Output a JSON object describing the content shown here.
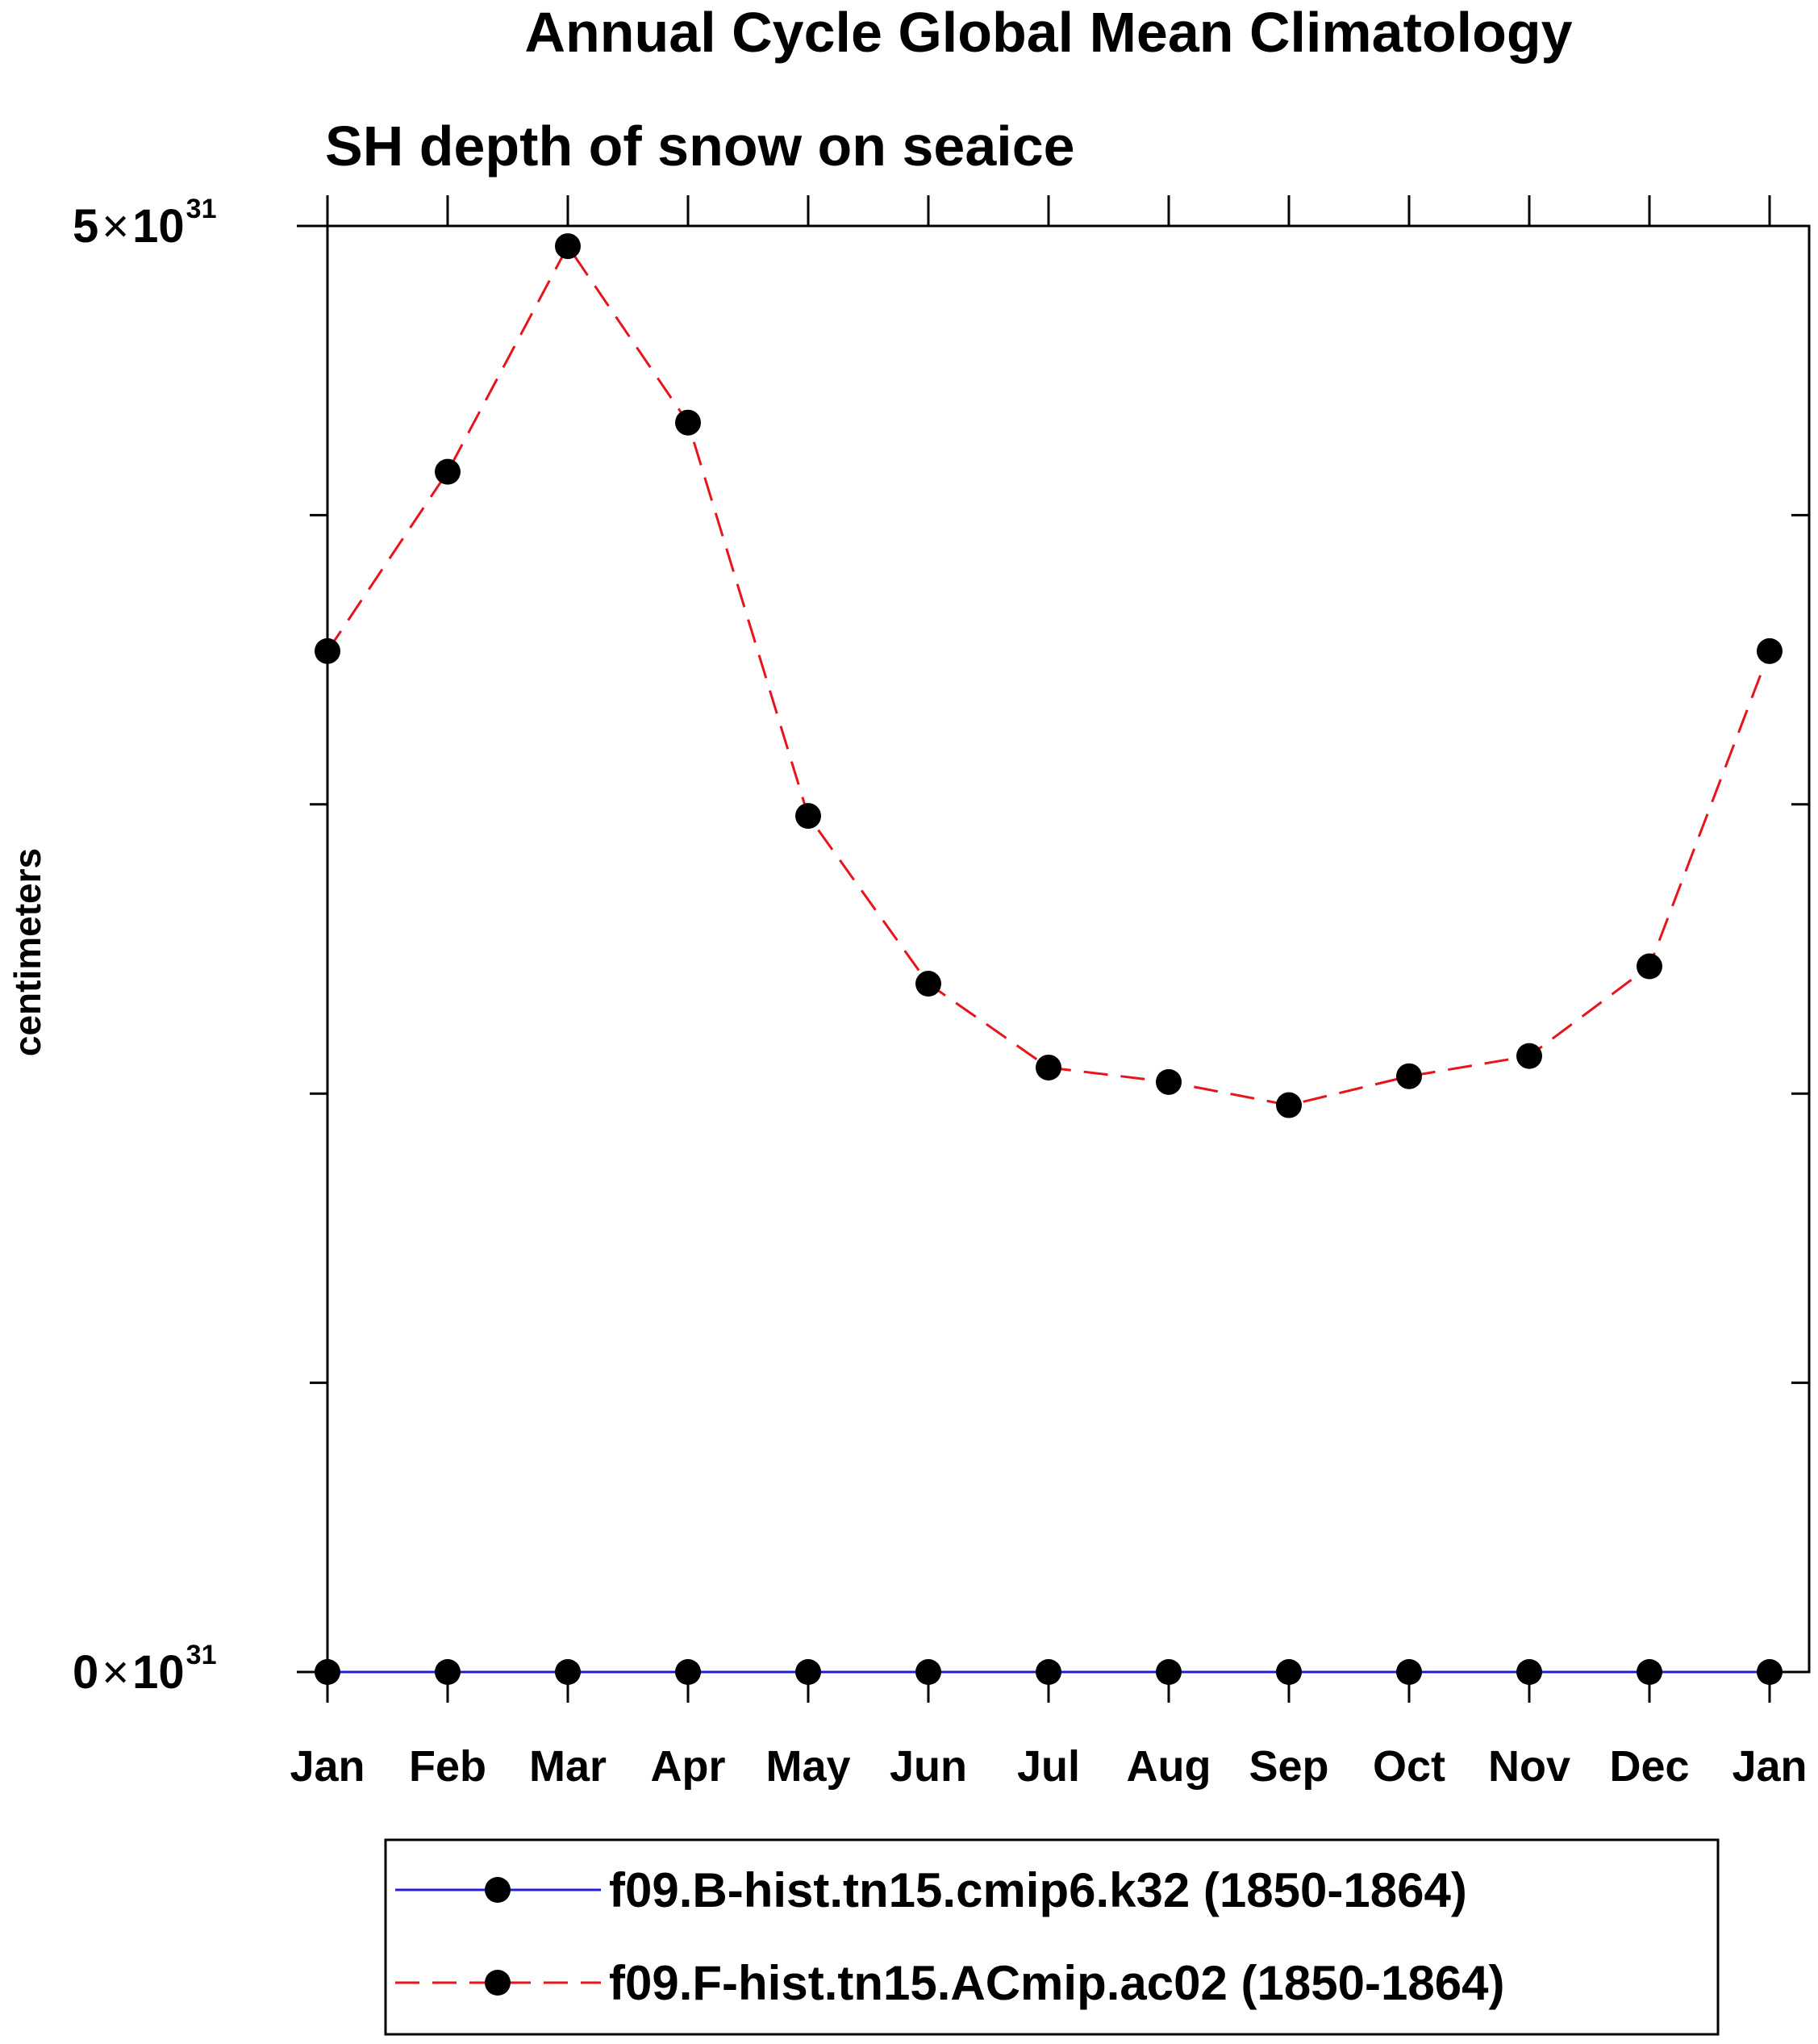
{
  "chart_data": {
    "type": "line",
    "title": "Annual Cycle Global Mean Climatology",
    "subtitle": "SH depth of snow on seaice",
    "ylabel": "centimeters",
    "xlabel": "",
    "categories": [
      "Jan",
      "Feb",
      "Mar",
      "Apr",
      "May",
      "Jun",
      "Jul",
      "Aug",
      "Sep",
      "Oct",
      "Nov",
      "Dec",
      "Jan"
    ],
    "ylim": [
      0,
      5
    ],
    "y_exponent": "31",
    "y_ticks": [
      {
        "value": 0,
        "mantissa": "0",
        "times": "×",
        "base": "10",
        "exp": "31"
      },
      {
        "value": 5,
        "mantissa": "5",
        "times": "×",
        "base": "10",
        "exp": "31"
      }
    ],
    "y_minor_ticks": [
      1,
      2,
      3,
      4
    ],
    "series": [
      {
        "name": "f09.B-hist.tn15.cmip6.k32 (1850-1864)",
        "color": "#1f1fd6",
        "line_style": "solid",
        "marker": "filled-circle",
        "values": [
          0,
          0,
          0,
          0,
          0,
          0,
          0,
          0,
          0,
          0,
          0,
          0,
          0
        ]
      },
      {
        "name": "f09.F-hist.tn15.ACmip.ac02 (1850-1864)",
        "color": "#e8141b",
        "line_style": "dashed",
        "marker": "filled-circle",
        "values": [
          3.53,
          4.15,
          4.93,
          4.32,
          2.96,
          2.38,
          2.09,
          2.04,
          1.96,
          2.06,
          2.13,
          2.44,
          3.53
        ]
      }
    ],
    "legend_position": "bottom-center",
    "grid": false
  }
}
